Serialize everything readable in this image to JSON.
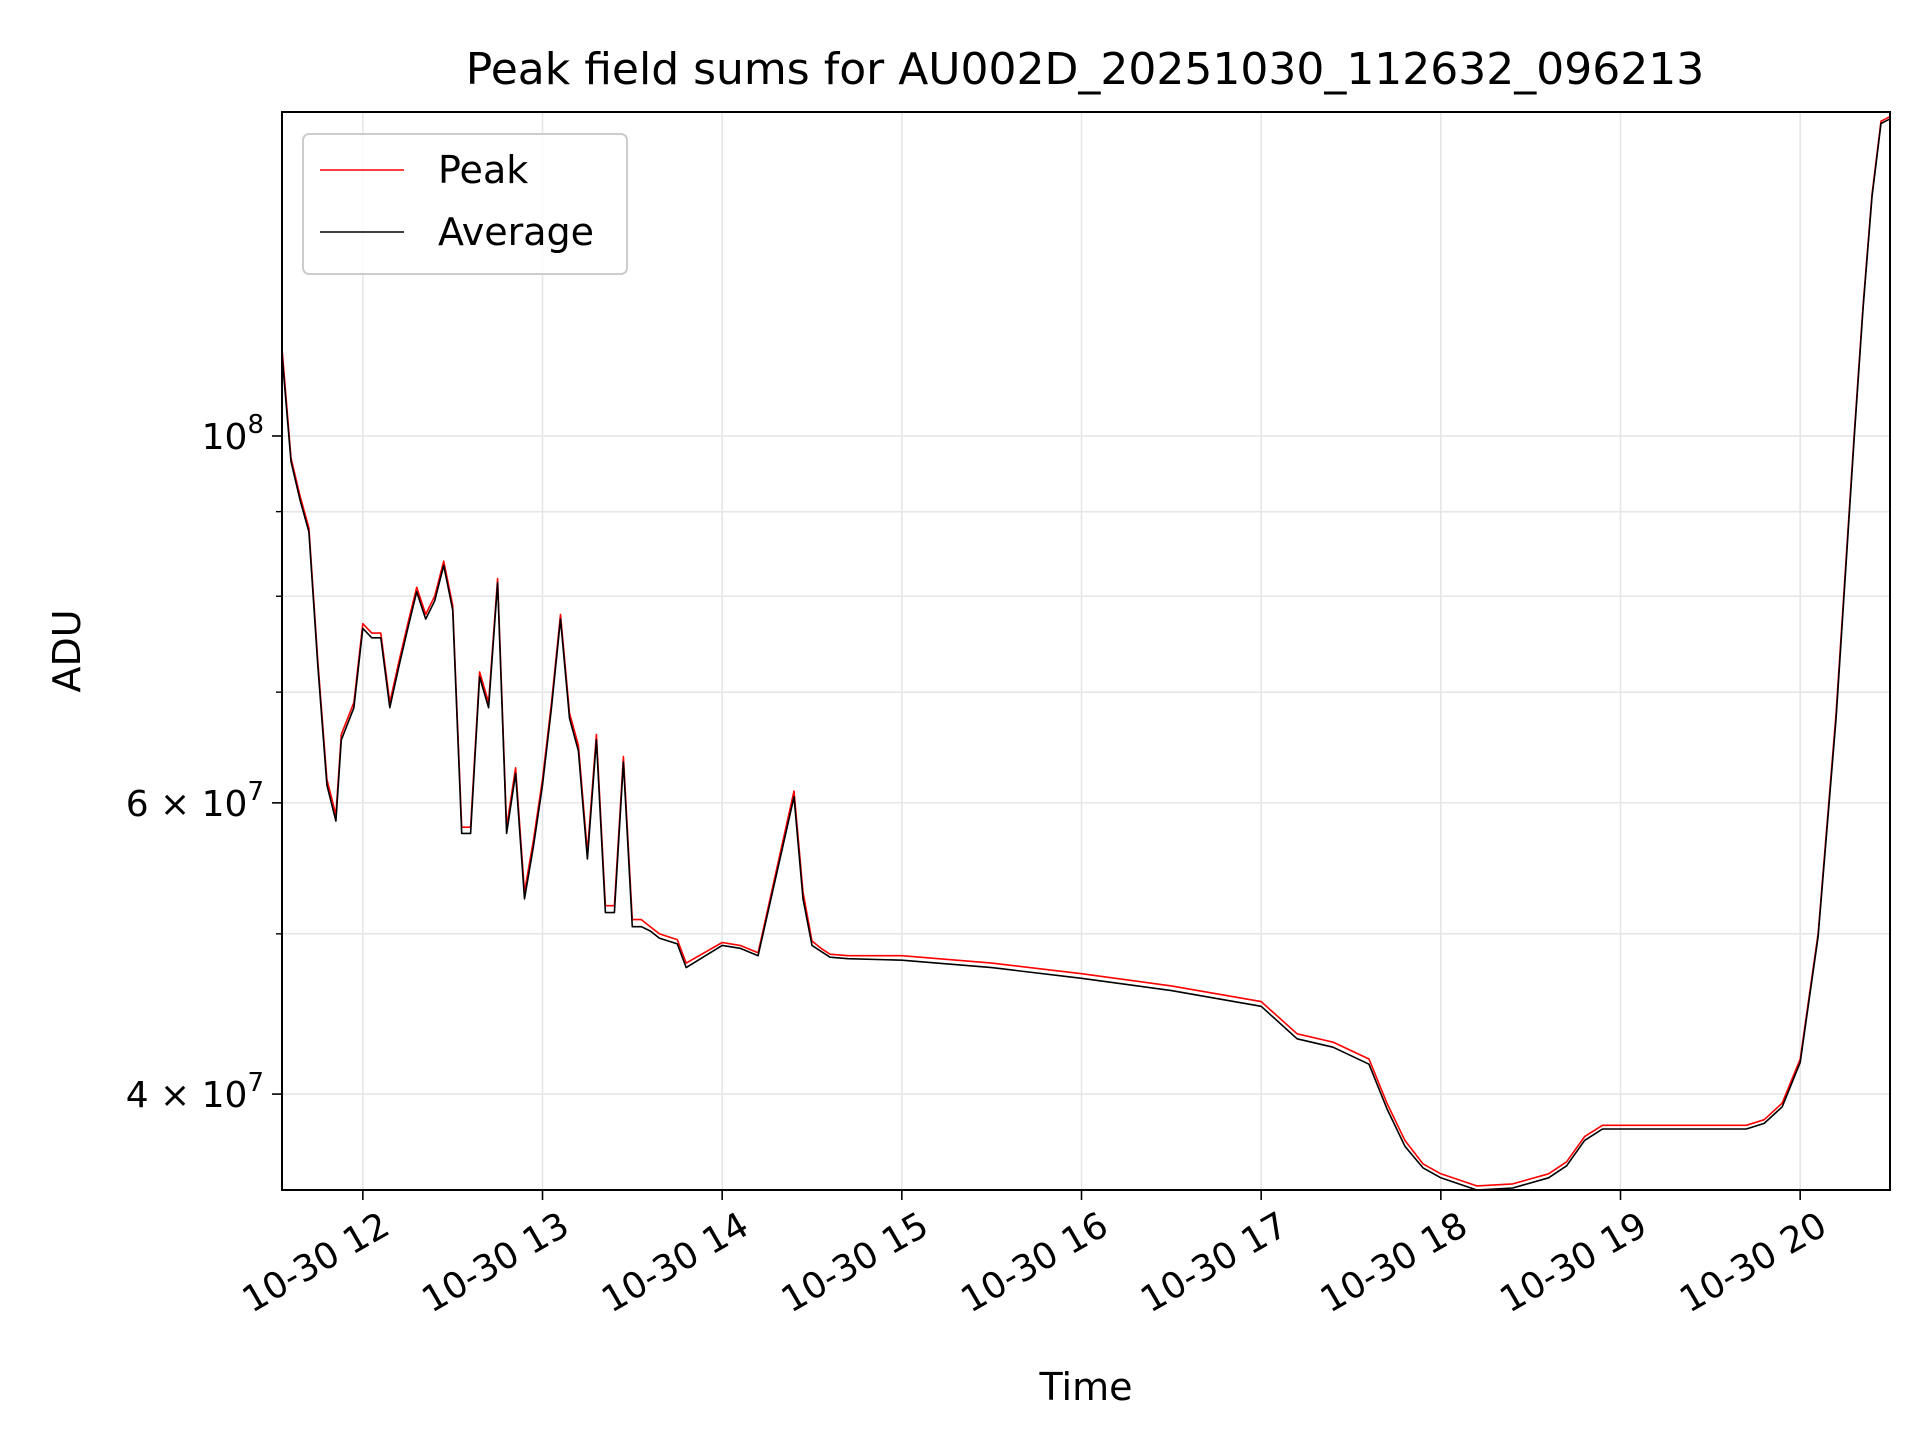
{
  "chart_data": {
    "type": "line",
    "title": "Peak field sums for AU002D_20251030_112632_096213",
    "xlabel": "Time",
    "ylabel": "ADU",
    "yscale": "log",
    "grid": true,
    "legend_position": "upper-left",
    "xlim": [
      11.55,
      20.5
    ],
    "ylim": [
      35000000,
      157000000
    ],
    "x_ticks": [
      {
        "value": 12,
        "label": "10-30 12"
      },
      {
        "value": 13,
        "label": "10-30 13"
      },
      {
        "value": 14,
        "label": "10-30 14"
      },
      {
        "value": 15,
        "label": "10-30 15"
      },
      {
        "value": 16,
        "label": "10-30 16"
      },
      {
        "value": 17,
        "label": "10-30 17"
      },
      {
        "value": 18,
        "label": "10-30 18"
      },
      {
        "value": 19,
        "label": "10-30 19"
      },
      {
        "value": 20,
        "label": "10-30 20"
      }
    ],
    "y_ticks": [
      {
        "value": 100000000,
        "base": "10",
        "exp": "8"
      },
      {
        "value": 60000000,
        "base": "6 × 10",
        "exp": "7"
      },
      {
        "value": 40000000,
        "base": "4 × 10",
        "exp": "7"
      }
    ],
    "y_minor_ticks": [
      50000000,
      70000000,
      80000000,
      90000000
    ],
    "series": [
      {
        "name": "Peak",
        "color": "#ff0000",
        "x": [
          11.55,
          11.6,
          11.65,
          11.7,
          11.75,
          11.8,
          11.85,
          11.88,
          11.95,
          12.0,
          12.05,
          12.1,
          12.15,
          12.2,
          12.25,
          12.3,
          12.35,
          12.4,
          12.45,
          12.5,
          12.55,
          12.6,
          12.65,
          12.7,
          12.75,
          12.8,
          12.85,
          12.9,
          12.95,
          13.0,
          13.05,
          13.1,
          13.15,
          13.2,
          13.25,
          13.3,
          13.35,
          13.4,
          13.45,
          13.5,
          13.55,
          13.6,
          13.65,
          13.7,
          13.75,
          13.8,
          14.0,
          14.1,
          14.2,
          14.4,
          14.45,
          14.5,
          14.55,
          14.6,
          14.7,
          15.0,
          15.5,
          16.0,
          16.5,
          17.0,
          17.2,
          17.4,
          17.6,
          17.7,
          17.8,
          17.9,
          18.0,
          18.2,
          18.4,
          18.6,
          18.7,
          18.8,
          18.9,
          19.0,
          19.5,
          19.7,
          19.8,
          19.9,
          20.0,
          20.1,
          20.2,
          20.3,
          20.35,
          20.4,
          20.45,
          20.5
        ],
        "y": [
          113000000,
          97000000,
          92000000,
          88000000,
          73000000,
          62000000,
          59000000,
          66000000,
          69000000,
          77000000,
          76000000,
          76000000,
          69000000,
          73000000,
          77000000,
          81000000,
          78000000,
          80000000,
          84000000,
          79000000,
          58000000,
          58000000,
          72000000,
          69000000,
          82000000,
          58000000,
          63000000,
          53000000,
          57000000,
          62000000,
          69000000,
          78000000,
          68000000,
          65000000,
          56000000,
          66000000,
          52000000,
          52000000,
          64000000,
          51000000,
          51000000,
          50500000,
          50000000,
          49800000,
          49600000,
          48000000,
          49400000,
          49200000,
          48700000,
          61000000,
          53000000,
          49500000,
          49000000,
          48600000,
          48500000,
          48500000,
          48000000,
          47300000,
          46500000,
          45500000,
          43500000,
          43000000,
          42000000,
          39500000,
          37500000,
          36300000,
          35800000,
          35200000,
          35300000,
          35800000,
          36400000,
          37700000,
          38300000,
          38300000,
          38300000,
          38300000,
          38600000,
          39500000,
          42000000,
          50000000,
          68000000,
          100000000,
          120000000,
          140000000,
          155000000,
          156000000
        ]
      },
      {
        "name": "Average",
        "color": "#000000",
        "x": [
          11.55,
          11.6,
          11.65,
          11.7,
          11.75,
          11.8,
          11.85,
          11.88,
          11.95,
          12.0,
          12.05,
          12.1,
          12.15,
          12.2,
          12.25,
          12.3,
          12.35,
          12.4,
          12.45,
          12.5,
          12.55,
          12.6,
          12.65,
          12.7,
          12.75,
          12.8,
          12.85,
          12.9,
          12.95,
          13.0,
          13.05,
          13.1,
          13.15,
          13.2,
          13.25,
          13.3,
          13.35,
          13.4,
          13.45,
          13.5,
          13.55,
          13.6,
          13.65,
          13.7,
          13.75,
          13.8,
          14.0,
          14.1,
          14.2,
          14.4,
          14.45,
          14.5,
          14.55,
          14.6,
          14.7,
          15.0,
          15.5,
          16.0,
          16.5,
          17.0,
          17.2,
          17.4,
          17.6,
          17.7,
          17.8,
          17.9,
          18.0,
          18.2,
          18.4,
          18.6,
          18.7,
          18.8,
          18.9,
          19.0,
          19.5,
          19.7,
          19.8,
          19.9,
          20.0,
          20.1,
          20.2,
          20.3,
          20.35,
          20.4,
          20.45,
          20.5
        ],
        "y": [
          112000000,
          96500000,
          91500000,
          87500000,
          72500000,
          61500000,
          58500000,
          65500000,
          68500000,
          76500000,
          75500000,
          75500000,
          68500000,
          72500000,
          76500000,
          80500000,
          77500000,
          79500000,
          83500000,
          78500000,
          57500000,
          57500000,
          71500000,
          68500000,
          81500000,
          57500000,
          62500000,
          52500000,
          56500000,
          61500000,
          68500000,
          77500000,
          67500000,
          64500000,
          55500000,
          65500000,
          51500000,
          51500000,
          63500000,
          50500000,
          50500000,
          50200000,
          49700000,
          49500000,
          49300000,
          47700000,
          49200000,
          49000000,
          48500000,
          60500000,
          52500000,
          49200000,
          48800000,
          48400000,
          48300000,
          48200000,
          47700000,
          47000000,
          46200000,
          45200000,
          43200000,
          42700000,
          41700000,
          39200000,
          37200000,
          36100000,
          35600000,
          35000000,
          35100000,
          35600000,
          36200000,
          37500000,
          38100000,
          38100000,
          38100000,
          38100000,
          38400000,
          39300000,
          41800000,
          49800000,
          67500000,
          99500000,
          119500000,
          139500000,
          154500000,
          155500000
        ]
      }
    ]
  }
}
